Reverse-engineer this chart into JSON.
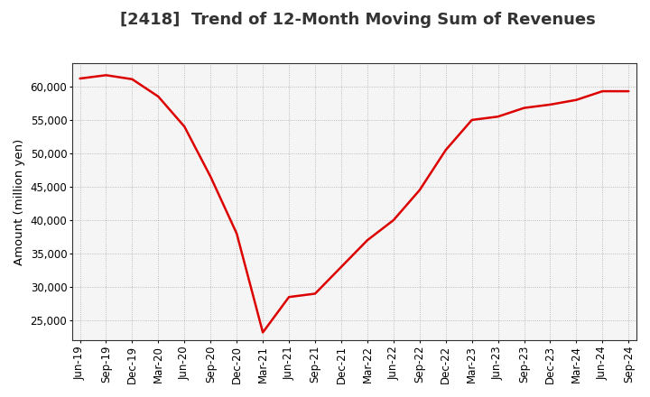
{
  "title": "[2418]  Trend of 12-Month Moving Sum of Revenues",
  "ylabel": "Amount (million yen)",
  "background_color": "#ffffff",
  "plot_bg_color": "#f5f5f5",
  "grid_color": "#999999",
  "line_color": "#dd0000",
  "x_labels": [
    "Jun-19",
    "Sep-19",
    "Dec-19",
    "Mar-20",
    "Jun-20",
    "Sep-20",
    "Dec-20",
    "Mar-21",
    "Jun-21",
    "Sep-21",
    "Dec-21",
    "Mar-22",
    "Jun-22",
    "Sep-22",
    "Dec-22",
    "Mar-23",
    "Jun-23",
    "Sep-23",
    "Dec-23",
    "Mar-24",
    "Jun-24",
    "Sep-24"
  ],
  "values": [
    61200,
    61700,
    61100,
    58500,
    54000,
    46500,
    38000,
    23200,
    28500,
    29000,
    33000,
    37000,
    40000,
    44500,
    50500,
    55000,
    55500,
    56800,
    57300,
    58000,
    59300,
    59300
  ],
  "ylim": [
    22000,
    63500
  ],
  "yticks": [
    25000,
    30000,
    35000,
    40000,
    45000,
    50000,
    55000,
    60000
  ],
  "title_fontsize": 13,
  "axis_fontsize": 9.5,
  "tick_fontsize": 8.5
}
